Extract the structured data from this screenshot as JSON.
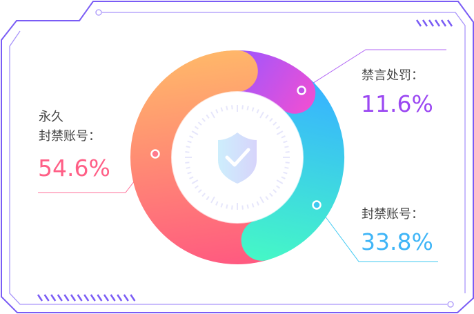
{
  "chart_data": {
    "type": "pie",
    "variant": "donut",
    "slices": [
      {
        "label_lines": [
          "永久",
          "封禁账号："
        ],
        "value": 54.6,
        "value_text": "54.6%",
        "color": "#ff5f86",
        "gradient": [
          "#ffb869",
          "#ff5a80"
        ]
      },
      {
        "label_lines": [
          "禁言处罚："
        ],
        "value": 11.6,
        "value_text": "11.6%",
        "color": "#9b48f2",
        "gradient": [
          "#a556fa",
          "#ee4fd4"
        ]
      },
      {
        "label_lines": [
          "封禁账号："
        ],
        "value": 33.8,
        "value_text": "33.8%",
        "color": "#3fb5f7",
        "gradient": [
          "#37b3ff",
          "#45f8c6"
        ]
      }
    ],
    "center_icon": "shield-check-icon"
  },
  "frame_color": "#7a5cf5"
}
